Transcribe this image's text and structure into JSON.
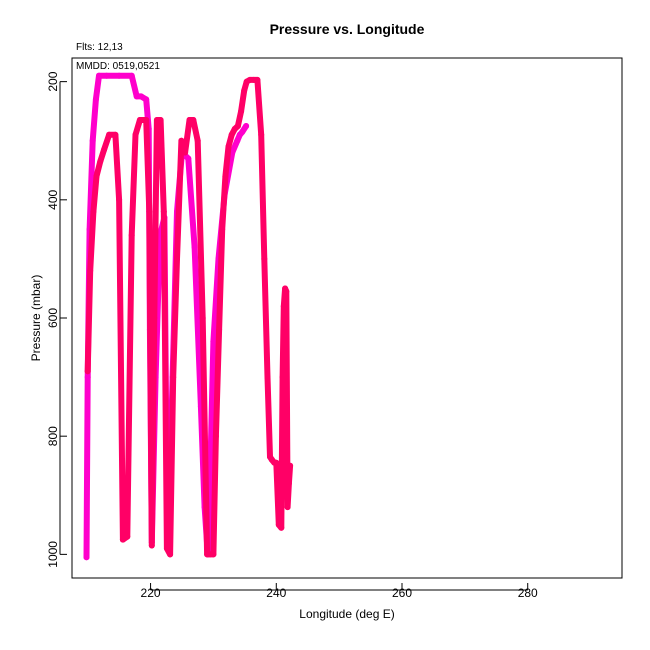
{
  "chart_data": {
    "type": "line",
    "title": "Pressure vs. Longitude",
    "xlabel": "Longitude (deg E)",
    "ylabel": "Pressure (mbar)",
    "xlim": [
      207.5,
      295
    ],
    "ylim": [
      1040,
      160
    ],
    "y_reversed": true,
    "x_ticks": [
      "220",
      "240",
      "260",
      "280"
    ],
    "y_ticks": [
      "200",
      "400",
      "600",
      "800",
      "1000"
    ],
    "grid": false,
    "annotations": {
      "flights": "Flts: 12,13",
      "dates": "MMDD: 0519,0521"
    },
    "series": [
      {
        "color": "#ff00cc",
        "x": [
          209.8,
          210.0,
          210.3,
          210.8,
          211.3,
          211.8,
          213.0,
          215.0,
          217.0,
          217.8,
          218.5,
          219.3,
          219.7,
          219.9,
          220.2,
          220.8,
          221.5,
          222.2,
          222.5,
          222.8,
          223.5,
          224.2,
          225.0,
          226.0,
          227.0,
          228.0,
          228.6,
          229.1,
          229.5,
          230.0,
          230.8,
          231.8,
          233.0,
          233.8,
          234.2,
          234.6,
          235.2
        ],
        "y": [
          1005,
          700,
          450,
          300,
          230,
          190,
          190,
          190,
          190,
          225,
          225,
          230,
          280,
          620,
          980,
          700,
          460,
          430,
          800,
          990,
          700,
          420,
          320,
          330,
          480,
          750,
          920,
          1000,
          860,
          640,
          500,
          390,
          320,
          300,
          290,
          285,
          275
        ]
      },
      {
        "color": "#ff0066",
        "x": [
          210.0,
          210.4,
          210.9,
          211.4,
          212.0,
          212.6,
          213.4,
          214.4,
          215.0,
          215.6,
          216.3,
          217.0,
          217.6,
          218.3,
          218.8,
          219.3,
          219.8,
          220.2,
          220.6,
          221.0,
          221.6,
          222.1,
          222.6,
          223.1,
          223.6,
          224.2,
          224.9,
          225.5,
          226.2,
          226.8,
          227.5,
          228.3,
          229.0,
          229.5,
          230.0,
          230.4,
          230.9,
          231.4,
          231.9,
          232.4,
          232.9,
          233.4,
          233.9,
          234.4,
          234.9,
          235.3,
          235.8,
          236.4,
          237.0,
          237.6,
          238.1,
          238.6,
          239.0,
          239.3,
          239.7,
          240.0,
          240.4,
          240.8,
          241.0,
          241.2,
          241.4,
          241.6,
          241.8,
          242.0,
          242.2
        ],
        "y": [
          690,
          520,
          420,
          360,
          335,
          315,
          290,
          290,
          400,
          975,
          970,
          460,
          290,
          265,
          265,
          265,
          420,
          985,
          600,
          265,
          265,
          420,
          990,
          1000,
          700,
          500,
          300,
          320,
          265,
          265,
          300,
          600,
          1000,
          1000,
          1000,
          800,
          620,
          450,
          360,
          310,
          290,
          280,
          275,
          250,
          215,
          200,
          197,
          197,
          197,
          290,
          500,
          700,
          835,
          840,
          845,
          845,
          950,
          955,
          700,
          580,
          550,
          555,
          920,
          880,
          850
        ]
      }
    ]
  }
}
